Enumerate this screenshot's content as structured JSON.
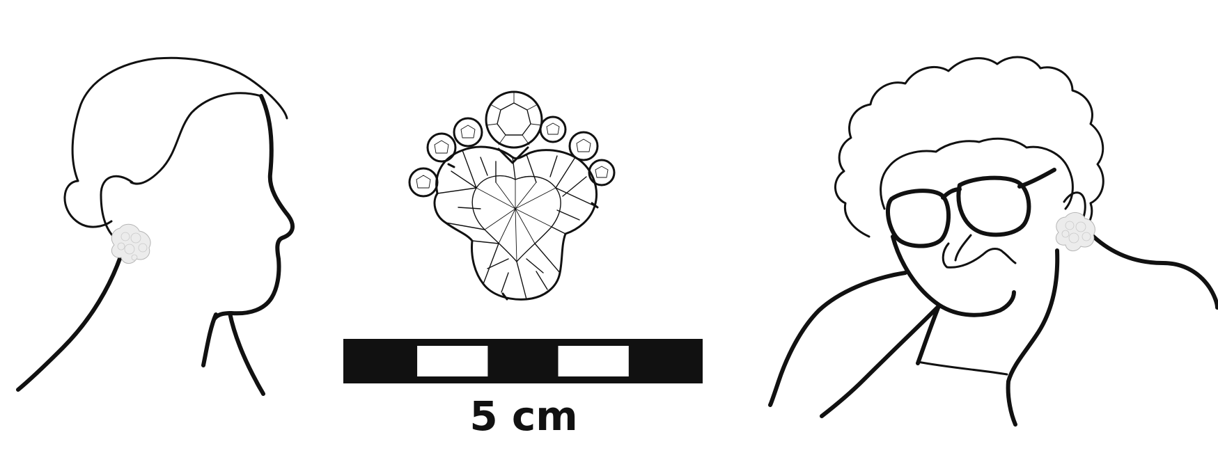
{
  "scale_bar": {
    "label": "5 cm",
    "segments": 5,
    "colors": {
      "dark": "#111111",
      "light": "#ffffff"
    }
  },
  "colors": {
    "line": "#111111",
    "background": "#ffffff",
    "earring": "#ececec"
  },
  "icons": {
    "left_figure": "profile-portrait-icon",
    "center_figure": "gem-cluster-earring-icon",
    "right_figure": "front-portrait-icon"
  }
}
